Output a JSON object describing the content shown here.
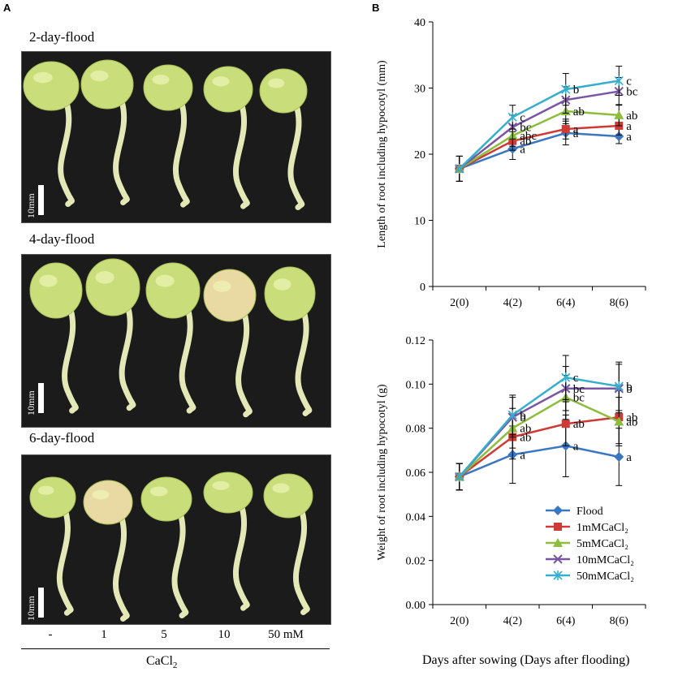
{
  "panels": {
    "a": "A",
    "b": "B"
  },
  "photos": [
    {
      "title": "2-day-flood",
      "scale_label": "10mm"
    },
    {
      "title": "4-day-flood",
      "scale_label": "10mm"
    },
    {
      "title": "6-day-flood",
      "scale_label": "10mm"
    }
  ],
  "treatments": [
    "-",
    "1",
    "5",
    "10",
    "50 mM"
  ],
  "compound": {
    "base": "CaCl",
    "sub": "2"
  },
  "shared_xlabel": "Days after sowing (Days after flooding)",
  "colors": {
    "Flood": "#3a77c0",
    "1mMCaCl2": "#cc3b36",
    "5mMCaCl2": "#8cbd3c",
    "10mMCaCl2": "#7a55a3",
    "50mMCaCl2": "#36aecd",
    "seed": "#c9de7a",
    "seed_pale": "#e9d9a2",
    "root": "#e3e8b6",
    "photo_bg": "#1b1b1b"
  },
  "chart_data": [
    {
      "type": "line",
      "title": "",
      "ylabel": "Length of root including hypocotyl (mm)",
      "xlabel": "",
      "categories": [
        "2(0)",
        "4(2)",
        "6(4)",
        "8(6)"
      ],
      "ylim": [
        0,
        40
      ],
      "yticks": [
        "0",
        "10",
        "20",
        "30",
        "40"
      ],
      "series": [
        {
          "name": "Flood",
          "values": [
            17.8,
            20.8,
            23.2,
            22.7
          ],
          "errors": [
            1.9,
            1.6,
            1.8,
            1.1
          ],
          "marker": "diamond",
          "letters": [
            "",
            "a",
            "a",
            "a"
          ]
        },
        {
          "name": "1mMCaCl2",
          "values": [
            17.8,
            22.0,
            23.8,
            24.3
          ],
          "errors": [
            1.9,
            1.4,
            1.5,
            1.4
          ],
          "marker": "square",
          "letters": [
            "",
            "ab",
            "a",
            "a"
          ]
        },
        {
          "name": "5mMCaCl2",
          "values": [
            17.8,
            22.8,
            26.5,
            25.9
          ],
          "errors": [
            1.9,
            1.6,
            1.9,
            1.6
          ],
          "marker": "triangle",
          "letters": [
            "",
            "abc",
            "ab",
            "ab"
          ]
        },
        {
          "name": "10mMCaCl2",
          "values": [
            17.8,
            24.1,
            28.2,
            29.5
          ],
          "errors": [
            1.9,
            1.8,
            2.0,
            2.1
          ],
          "marker": "x",
          "letters": [
            "",
            "bc",
            "",
            "bc"
          ]
        },
        {
          "name": "50mMCaCl2",
          "values": [
            17.8,
            25.6,
            29.8,
            31.1
          ],
          "errors": [
            1.9,
            1.8,
            2.4,
            2.2
          ],
          "marker": "star",
          "letters": [
            "",
            "c",
            "b",
            "c"
          ]
        }
      ]
    },
    {
      "type": "line",
      "title": "",
      "ylabel": "Weight of root including hypocotyl (g)",
      "xlabel": "",
      "categories": [
        "2(0)",
        "4(2)",
        "6(4)",
        "8(6)"
      ],
      "ylim": [
        0,
        0.12
      ],
      "yticks": [
        "0.00",
        "0.02",
        "0.04",
        "0.06",
        "0.08",
        "0.10",
        "0.12"
      ],
      "series": [
        {
          "name": "Flood",
          "values": [
            0.058,
            0.068,
            0.072,
            0.067
          ],
          "errors": [
            0.006,
            0.013,
            0.014,
            0.013
          ],
          "marker": "diamond",
          "letters": [
            "",
            "a",
            "a",
            "a"
          ]
        },
        {
          "name": "1mMCaCl2",
          "values": [
            0.058,
            0.076,
            0.082,
            0.085
          ],
          "errors": [
            0.006,
            0.01,
            0.01,
            0.012
          ],
          "marker": "square",
          "letters": [
            "",
            "ab",
            "ab",
            "ab"
          ]
        },
        {
          "name": "5mMCaCl2",
          "values": [
            0.058,
            0.08,
            0.094,
            0.083
          ],
          "errors": [
            0.006,
            0.009,
            0.01,
            0.011
          ],
          "marker": "triangle",
          "letters": [
            "",
            "ab",
            "bc",
            "ab"
          ]
        },
        {
          "name": "10mMCaCl2",
          "values": [
            0.058,
            0.085,
            0.098,
            0.098
          ],
          "errors": [
            0.006,
            0.009,
            0.01,
            0.011
          ],
          "marker": "x",
          "letters": [
            "",
            "b",
            "bc",
            "b"
          ]
        },
        {
          "name": "50mMCaCl2",
          "values": [
            0.058,
            0.086,
            0.103,
            0.099
          ],
          "errors": [
            0.006,
            0.009,
            0.01,
            0.011
          ],
          "marker": "star",
          "letters": [
            "",
            "b",
            "c",
            "b"
          ]
        }
      ],
      "legend": {
        "position": "bottom-right",
        "entries": [
          {
            "label": "Flood",
            "marker": "diamond"
          },
          {
            "label": "1mMCaCl₂",
            "marker": "square"
          },
          {
            "label": "5mMCaCl₂",
            "marker": "triangle"
          },
          {
            "label": "10mMCaCl₂",
            "marker": "x"
          },
          {
            "label": "50mMCaCl₂",
            "marker": "star"
          }
        ]
      }
    }
  ]
}
